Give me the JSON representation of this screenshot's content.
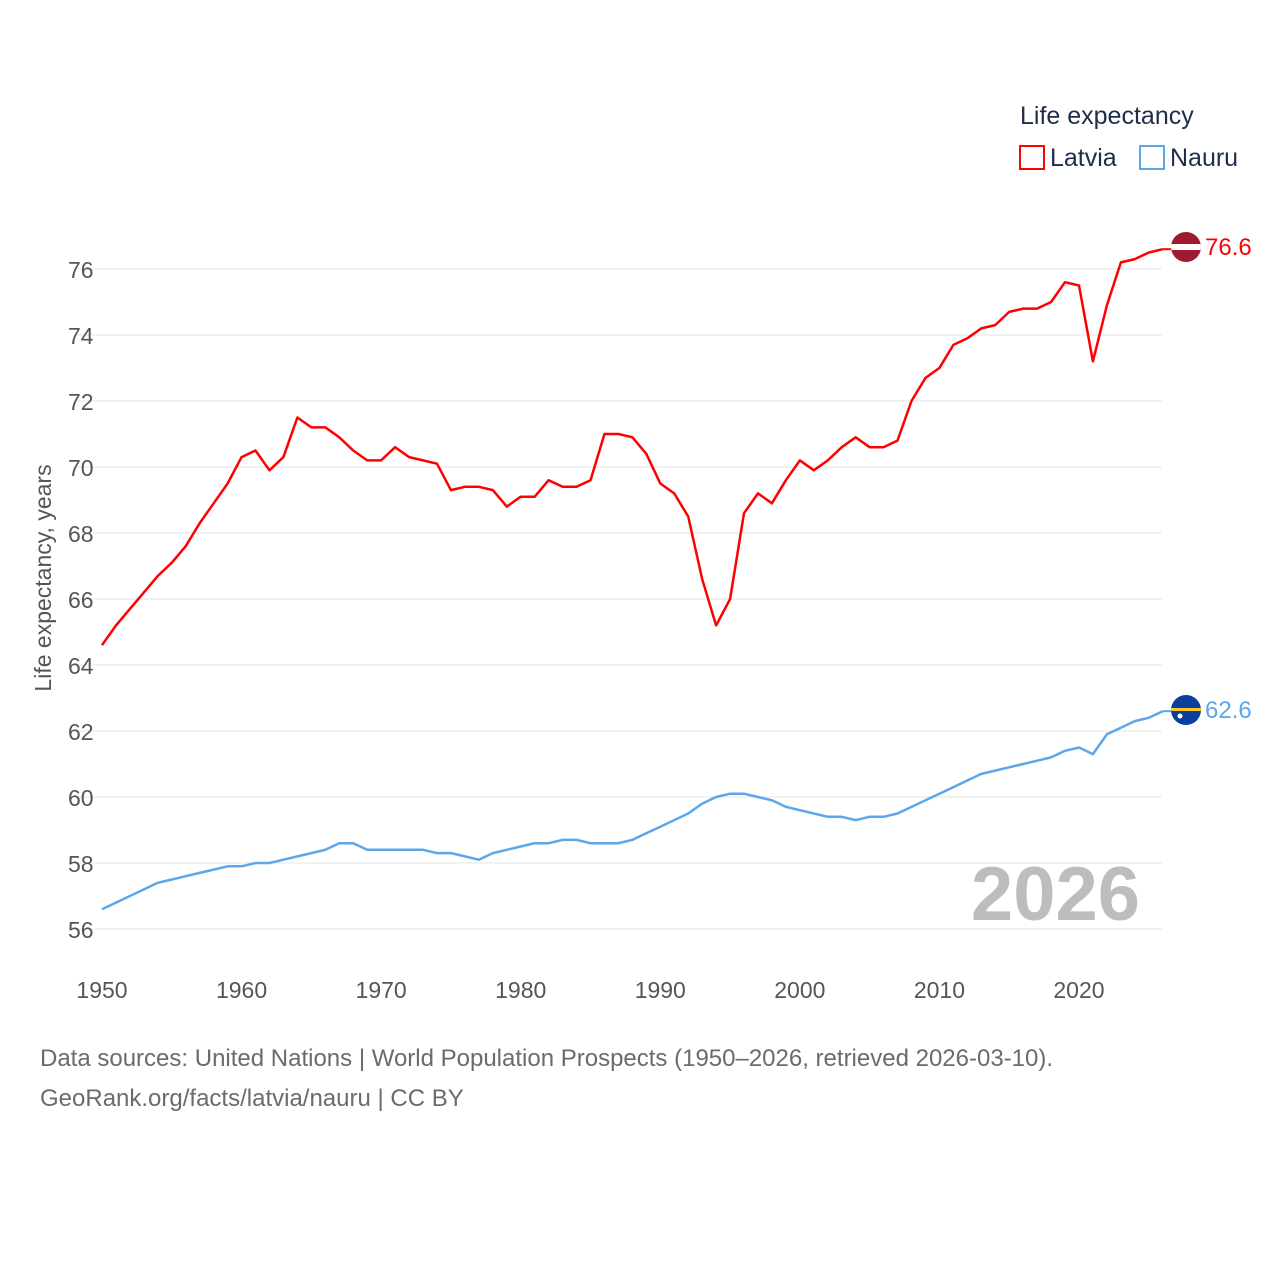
{
  "chart_data": {
    "type": "line",
    "title": "Life expectancy",
    "ylabel": "Life expectancy, years",
    "xlabel": "",
    "xlim": [
      1950,
      2026
    ],
    "ylim": [
      56,
      76
    ],
    "x_ticks": [
      1950,
      1960,
      1970,
      1980,
      1990,
      2000,
      2010,
      2020
    ],
    "y_ticks": [
      56,
      58,
      60,
      62,
      64,
      66,
      68,
      70,
      72,
      74,
      76
    ],
    "grid": true,
    "legend_placement": "top-right",
    "year_label": "2026",
    "x_start": 1950,
    "series": [
      {
        "name": "Latvia",
        "color": "#ff0000",
        "end_label": "76.6",
        "values": [
          64.6,
          65.2,
          65.7,
          66.2,
          66.7,
          67.1,
          67.6,
          68.3,
          68.9,
          69.5,
          70.3,
          70.5,
          69.9,
          70.3,
          71.5,
          71.2,
          71.2,
          70.9,
          70.5,
          70.2,
          70.2,
          70.6,
          70.3,
          70.2,
          70.1,
          69.3,
          69.4,
          69.4,
          69.3,
          68.8,
          69.1,
          69.1,
          69.6,
          69.4,
          69.4,
          69.6,
          71.0,
          71.0,
          70.9,
          70.4,
          69.5,
          69.2,
          68.5,
          66.6,
          65.2,
          66.0,
          68.6,
          69.2,
          68.9,
          69.6,
          70.2,
          69.9,
          70.2,
          70.6,
          70.9,
          70.6,
          70.6,
          70.8,
          72.0,
          72.7,
          73.0,
          73.7,
          73.9,
          74.2,
          74.3,
          74.7,
          74.8,
          74.8,
          75.0,
          75.6,
          75.5,
          73.2,
          74.9,
          76.2,
          76.3,
          76.5,
          76.6
        ]
      },
      {
        "name": "Nauru",
        "color": "#5ba7ec",
        "end_label": "62.6",
        "values": [
          56.6,
          56.8,
          57.0,
          57.2,
          57.4,
          57.5,
          57.6,
          57.7,
          57.8,
          57.9,
          57.9,
          58.0,
          58.0,
          58.1,
          58.2,
          58.3,
          58.4,
          58.6,
          58.6,
          58.4,
          58.4,
          58.4,
          58.4,
          58.4,
          58.3,
          58.3,
          58.2,
          58.1,
          58.3,
          58.4,
          58.5,
          58.6,
          58.6,
          58.7,
          58.7,
          58.6,
          58.6,
          58.6,
          58.7,
          58.9,
          59.1,
          59.3,
          59.5,
          59.8,
          60.0,
          60.1,
          60.1,
          60.0,
          59.9,
          59.7,
          59.6,
          59.5,
          59.4,
          59.4,
          59.3,
          59.4,
          59.4,
          59.5,
          59.7,
          59.9,
          60.1,
          60.3,
          60.5,
          60.7,
          60.8,
          60.9,
          61.0,
          61.1,
          61.2,
          61.4,
          61.5,
          61.3,
          61.9,
          62.1,
          62.3,
          62.4,
          62.6
        ]
      }
    ]
  },
  "footer": {
    "line1": "Data sources: United Nations | World Population Prospects (1950–2026, retrieved 2026-03-10).",
    "line2": "GeoRank.org/facts/latvia/nauru | CC BY"
  }
}
